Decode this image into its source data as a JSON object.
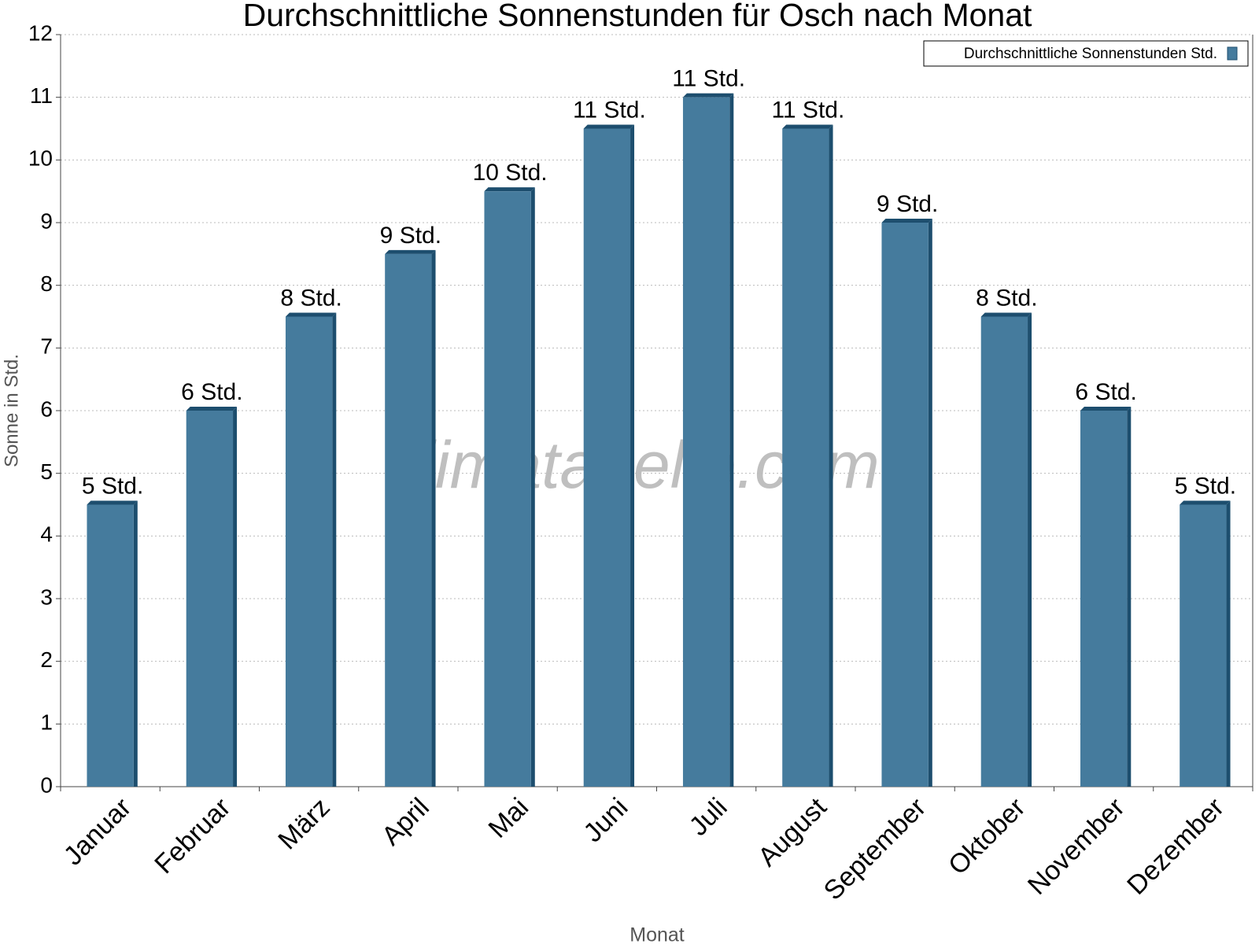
{
  "chart_data": {
    "type": "bar",
    "title": "Durchschnittliche Sonnenstunden für Osch nach Monat",
    "x_label": "Monat",
    "y_label": "Sonne in Std.",
    "watermark": "klimatabelle.com",
    "categories": [
      "Januar",
      "Februar",
      "März",
      "April",
      "Mai",
      "Juni",
      "Juli",
      "August",
      "September",
      "Oktober",
      "November",
      "Dezember"
    ],
    "series": [
      {
        "name": "Durchschnittliche Sonnenstunden Std.",
        "color": "#457b9d",
        "values": [
          4.5,
          6,
          7.5,
          8.5,
          9.5,
          10.5,
          11,
          10.5,
          9,
          7.5,
          6,
          4.5
        ],
        "value_labels": [
          "5 Std.",
          "6 Std.",
          "8 Std.",
          "9 Std.",
          "10 Std.",
          "11 Std.",
          "11 Std.",
          "11 Std.",
          "9 Std.",
          "8 Std.",
          "6 Std.",
          "5 Std."
        ]
      }
    ],
    "ylim": [
      0,
      12
    ],
    "yticks": [
      0,
      1,
      2,
      3,
      4,
      5,
      6,
      7,
      8,
      9,
      10,
      11,
      12
    ],
    "grid": true,
    "legend": "top-right"
  }
}
